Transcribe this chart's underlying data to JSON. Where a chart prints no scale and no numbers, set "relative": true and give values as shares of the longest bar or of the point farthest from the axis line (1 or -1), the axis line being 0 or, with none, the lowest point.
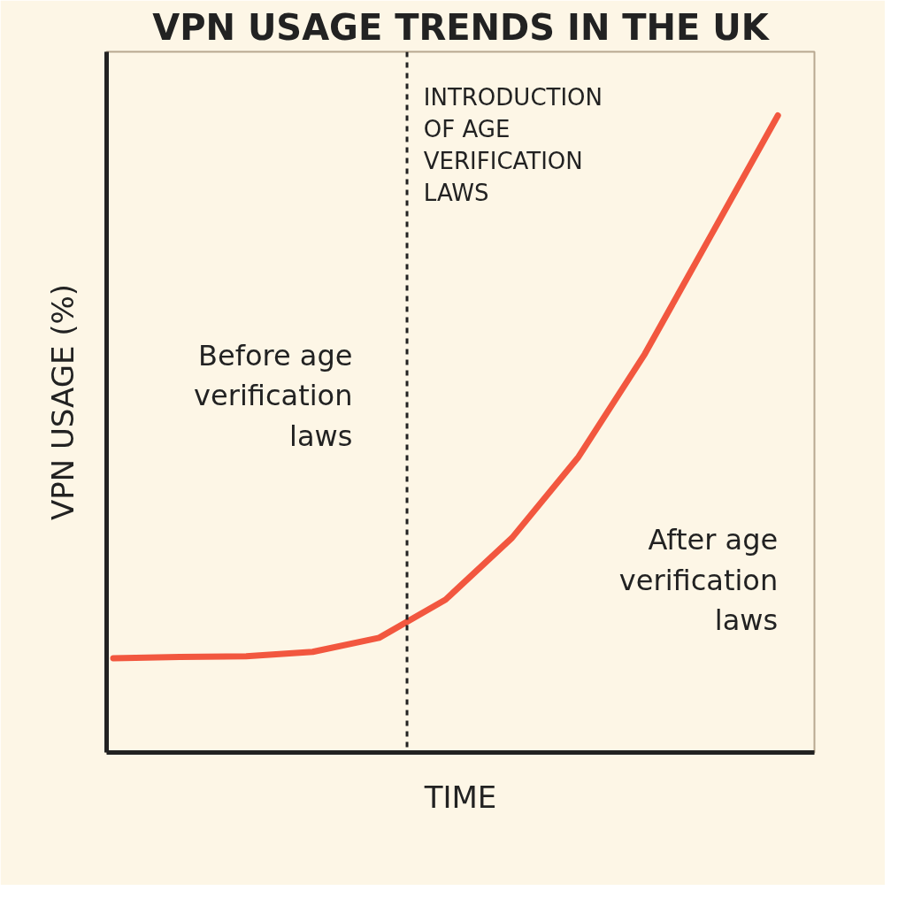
{
  "chart_data": {
    "type": "line",
    "title": "VPN USAGE TRENDS IN THE UK",
    "xlabel": "TIME",
    "ylabel": "VPN USAGE (%)",
    "relative": true,
    "categories": [
      null,
      null,
      null,
      null,
      null,
      null,
      null,
      null,
      null,
      null,
      null
    ],
    "series": [
      {
        "color": "#f2573f",
        "values": [
          0.148,
          0.15,
          0.151,
          0.158,
          0.18,
          0.24,
          0.337,
          0.464,
          0.626,
          0.813,
          1.0
        ]
      }
    ],
    "annotations": [
      "INTRODUCTION OF AGE VERIFICATION LAWS",
      "Before age verification laws",
      "After age verification laws"
    ],
    "marker": "none",
    "line_style": "solid"
  }
}
